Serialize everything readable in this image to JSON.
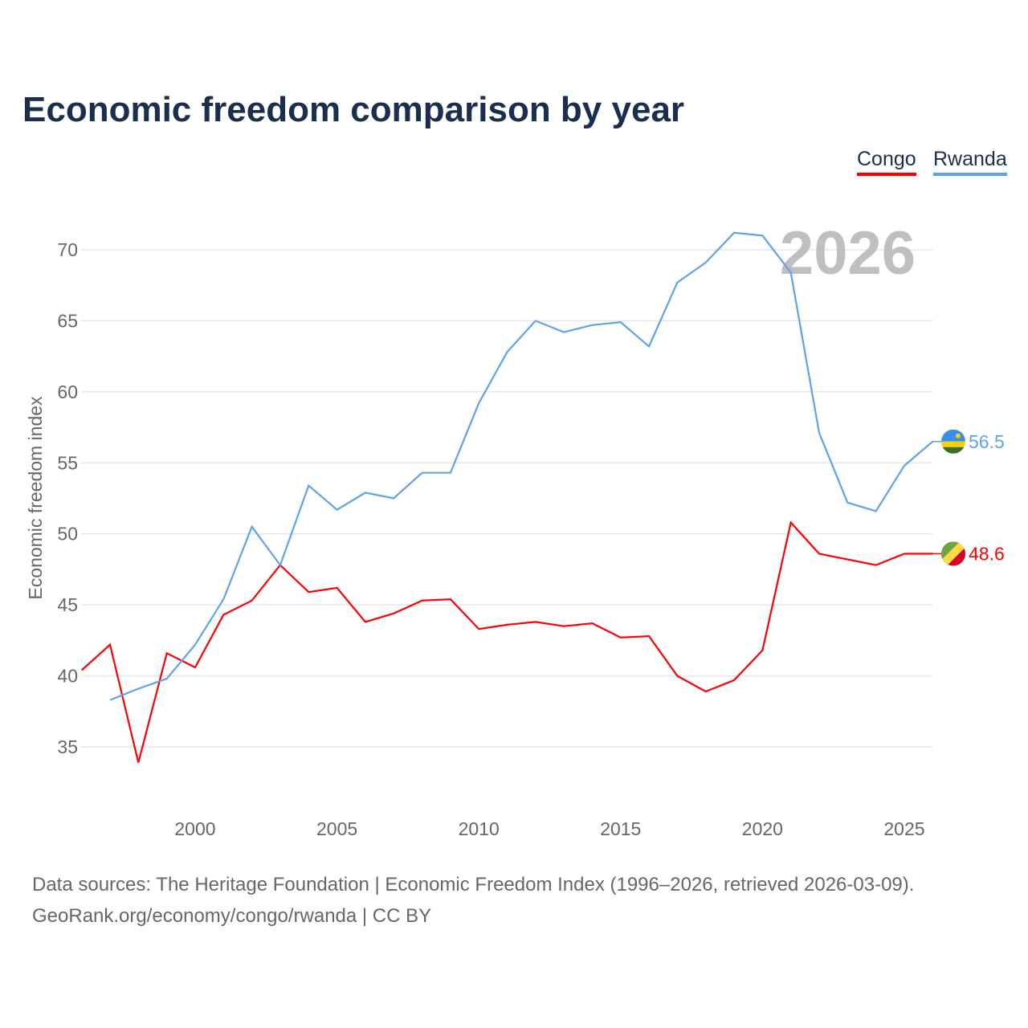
{
  "chart_data": {
    "type": "line",
    "title": "Economic freedom comparison by year",
    "xlabel": "",
    "ylabel": "Economic freedom index",
    "xlim": [
      1996,
      2026
    ],
    "ylim": [
      31,
      73
    ],
    "yticks": [
      35,
      40,
      45,
      50,
      55,
      60,
      65,
      70
    ],
    "xticks": [
      2000,
      2005,
      2010,
      2015,
      2020,
      2025
    ],
    "year_label": "2026",
    "legend_position": "top-right",
    "series": [
      {
        "name": "Congo",
        "color": "#ff0000",
        "end_label": "48.6",
        "start": 1996,
        "values": [
          40.4,
          42.2,
          33.9,
          41.6,
          40.6,
          44.3,
          45.3,
          47.8,
          45.9,
          46.2,
          43.8,
          44.4,
          45.3,
          45.4,
          43.3,
          43.6,
          43.8,
          43.5,
          43.7,
          42.7,
          42.8,
          40.0,
          38.9,
          39.7,
          41.8,
          50.8,
          48.6,
          48.2,
          47.8,
          48.6,
          48.6
        ]
      },
      {
        "name": "Rwanda",
        "color": "#5ba4ec",
        "end_label": "56.5",
        "start": 1997,
        "values": [
          38.3,
          39.1,
          39.8,
          42.2,
          45.4,
          50.5,
          47.8,
          53.4,
          51.7,
          52.9,
          52.5,
          54.3,
          54.3,
          59.2,
          62.8,
          65.0,
          64.2,
          64.7,
          64.9,
          63.2,
          67.7,
          69.1,
          71.2,
          71.0,
          68.4,
          57.1,
          52.2,
          51.6,
          54.8,
          56.5
        ]
      }
    ]
  },
  "footer": {
    "line1": "Data sources: The Heritage Foundation | Economic Freedom Index (1996–2026, retrieved 2026-03-09).",
    "line2": "GeoRank.org/economy/congo/rwanda | CC BY"
  }
}
